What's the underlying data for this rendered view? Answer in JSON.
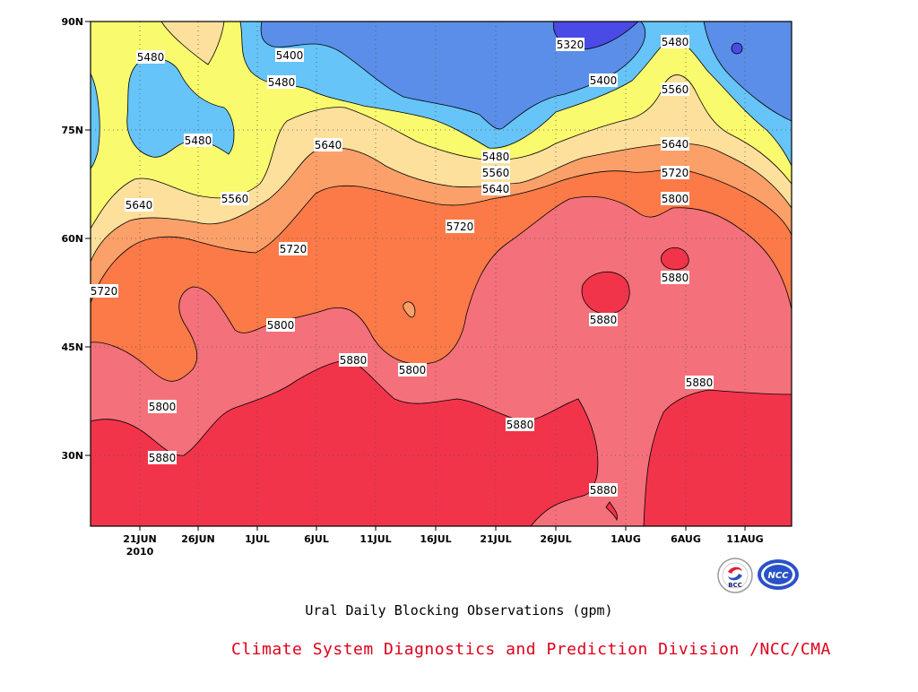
{
  "chart_data": {
    "type": "heatmap",
    "subtype": "filled-contour",
    "title": "Ural Daily Blocking Observations (gpm)",
    "ylim": [
      20,
      90
    ],
    "yticks": [
      "30N",
      "45N",
      "60N",
      "75N",
      "90N"
    ],
    "xticks": [
      "21JUN",
      "26JUN",
      "1JUL",
      "6JUL",
      "11JUL",
      "16JUL",
      "21JUL",
      "26JUL",
      "1AUG",
      "6AUG",
      "11AUG"
    ],
    "year_label": "2010",
    "contour_levels": [
      5320,
      5400,
      5480,
      5560,
      5640,
      5720,
      5800,
      5880
    ],
    "fill_colors": [
      "#4a4ae6",
      "#5a8ee8",
      "#66c4f8",
      "#fafa6e",
      "#fde09b",
      "#fca06a",
      "#fb7a48",
      "#f4707a",
      "#f2344a"
    ],
    "contour_labels": [
      {
        "value": "5320"
      },
      {
        "value": "5400"
      },
      {
        "value": "5400"
      },
      {
        "value": "5480"
      },
      {
        "value": "5480"
      },
      {
        "value": "5480"
      },
      {
        "value": "5480"
      },
      {
        "value": "5480"
      },
      {
        "value": "5560"
      },
      {
        "value": "5560"
      },
      {
        "value": "5560"
      },
      {
        "value": "5640"
      },
      {
        "value": "5640"
      },
      {
        "value": "5640"
      },
      {
        "value": "5640"
      },
      {
        "value": "5720"
      },
      {
        "value": "5720"
      },
      {
        "value": "5720"
      },
      {
        "value": "5720"
      },
      {
        "value": "5800"
      },
      {
        "value": "5800"
      },
      {
        "value": "5800"
      },
      {
        "value": "5800"
      },
      {
        "value": "5880"
      },
      {
        "value": "5880"
      },
      {
        "value": "5880"
      },
      {
        "value": "5880"
      },
      {
        "value": "5880"
      },
      {
        "value": "5880"
      },
      {
        "value": "5880"
      }
    ]
  },
  "logos": {
    "left": "bcc-logo",
    "right": "ncc-logo",
    "left_text": "BCC",
    "right_text": "NCC"
  },
  "credit": "Climate System Diagnostics and Prediction Division /NCC/CMA"
}
